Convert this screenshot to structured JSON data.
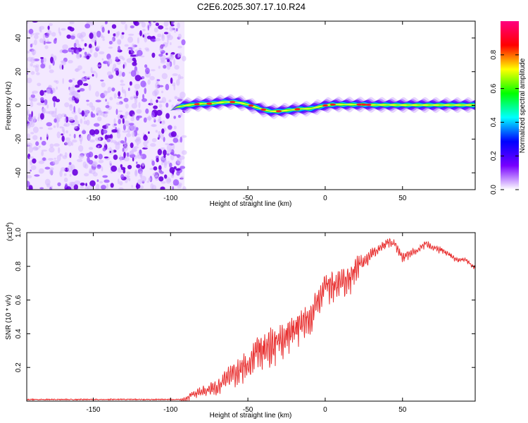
{
  "title": "C2E6.2025.307.17.10.R24",
  "chart_data": [
    {
      "type": "heatmap",
      "name": "spectrogram",
      "xlabel": "Height of straight line (km)",
      "ylabel": "Frequency (Hz)",
      "xlim": [
        -193,
        97
      ],
      "ylim": [
        -50,
        50
      ],
      "xticks": [
        -150,
        -100,
        -50,
        0,
        50
      ],
      "yticks": [
        -40,
        -20,
        0,
        20,
        40
      ],
      "noise_region": [
        -193,
        -91
      ],
      "signal_start": -100,
      "ridge": {
        "x": [
          -100,
          -96,
          -90,
          -85,
          -80,
          -75,
          -70,
          -65,
          -60,
          -55,
          -50,
          -45,
          -40,
          -35,
          -30,
          -25,
          -20,
          -15,
          -10,
          -5,
          0,
          5,
          10,
          15,
          20,
          25,
          30,
          40,
          50,
          60,
          70,
          80,
          97
        ],
        "y": [
          -3,
          -1,
          0,
          0.5,
          1,
          1,
          1.5,
          2,
          2,
          1.5,
          0.5,
          -1,
          -2.5,
          -3.5,
          -3.5,
          -3,
          -2.5,
          -2,
          -2,
          -1,
          0,
          0.5,
          0.5,
          0.5,
          0.5,
          0.5,
          0.3,
          0.3,
          0.2,
          0.2,
          0.2,
          0.2,
          0.2
        ]
      },
      "peaks": [
        -83,
        -75,
        -60,
        -48,
        -40,
        -30,
        -18,
        0,
        5,
        22,
        25,
        28
      ]
    },
    {
      "type": "line",
      "name": "snr",
      "xlabel": "Height of straight line (km)",
      "ylabel": "SNR (10 * v/v)",
      "multiplier_base": "(x10",
      "multiplier_exp": "4",
      "multiplier_close": ")",
      "xlim": [
        -193,
        97
      ],
      "ylim": [
        0,
        1.0
      ],
      "xticks": [
        -150,
        -100,
        -50,
        0,
        50
      ],
      "yticks": [
        0.2,
        0.4,
        0.6,
        0.8,
        1.0
      ],
      "ytick_labels": [
        "0.2",
        "0.4",
        "0.6",
        "0.8",
        "1.0"
      ],
      "color": "#e83030",
      "envelope": {
        "x": [
          -193,
          -95,
          -90,
          -85,
          -80,
          -75,
          -70,
          -65,
          -60,
          -55,
          -50,
          -45,
          -40,
          -35,
          -30,
          -25,
          -20,
          -15,
          -10,
          -5,
          0,
          5,
          10,
          15,
          20,
          25,
          30,
          35,
          40,
          45,
          50,
          55,
          60,
          65,
          70,
          75,
          80,
          85,
          90,
          97
        ],
        "y": [
          0.01,
          0.01,
          0.02,
          0.06,
          0.08,
          0.09,
          0.11,
          0.16,
          0.21,
          0.23,
          0.27,
          0.35,
          0.37,
          0.4,
          0.44,
          0.45,
          0.48,
          0.52,
          0.55,
          0.64,
          0.74,
          0.74,
          0.76,
          0.76,
          0.84,
          0.85,
          0.9,
          0.92,
          0.96,
          0.95,
          0.87,
          0.89,
          0.91,
          0.95,
          0.92,
          0.91,
          0.88,
          0.85,
          0.85,
          0.8
        ]
      },
      "spread": {
        "x": [
          -193,
          -95,
          -90,
          -80,
          -70,
          -60,
          -50,
          -40,
          -30,
          -20,
          -10,
          0,
          10,
          20,
          30,
          45,
          50,
          60,
          97
        ],
        "y": [
          0.005,
          0.005,
          0.02,
          0.05,
          0.07,
          0.1,
          0.14,
          0.17,
          0.16,
          0.14,
          0.14,
          0.12,
          0.13,
          0.1,
          0.05,
          0.04,
          0.04,
          0.03,
          0.02
        ]
      }
    }
  ],
  "colorbar": {
    "label": "Normalized spectral amplitude",
    "range": [
      0,
      1
    ],
    "ticks": [
      0.0,
      0.2,
      0.4,
      0.6,
      0.8
    ],
    "tick_labels": [
      "0.0",
      "0.2",
      "0.4",
      "0.6",
      "0.8"
    ],
    "stops": [
      "#ffffff",
      "#7700ff",
      "#0000ff",
      "#00ffff",
      "#00ff00",
      "#ffff00",
      "#ff0000",
      "#ff0080"
    ]
  }
}
